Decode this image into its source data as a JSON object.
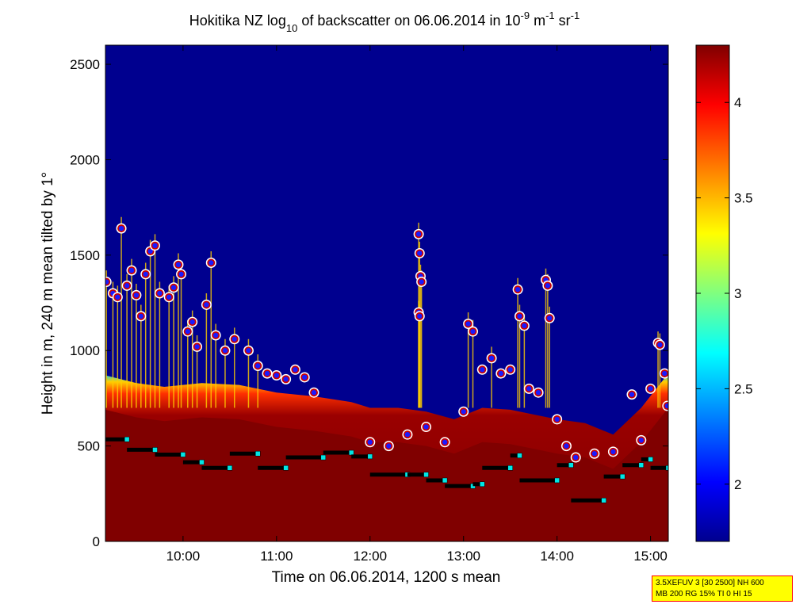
{
  "title": {
    "prefix": "Hokitika NZ log",
    "sub": "10",
    "mid": " of backscatter on 06.06.2014 in 10",
    "sup1": "-9",
    "mid2": " m",
    "sup2": "-1",
    "mid3": " sr",
    "sup3": "-1"
  },
  "info_box": {
    "line1": "3.5XEFUV 3 [30 2500] NH 600",
    "line2": "MB 200 RG 15% TI 0 HI 15"
  },
  "colors": {
    "background": "#00008f",
    "signal_low": "#00cfff",
    "signal_mid": "#ffcf00",
    "signal_high": "#800000",
    "marker_fill": "#1a1aff",
    "marker_ring": "#cc0000",
    "marker_outline": "#ffffff",
    "step_line": "#000000",
    "step_marker": "#00e5e5"
  },
  "chart_data": {
    "type": "heatmap",
    "xlabel": "Time on 06.06.2014, 1200 s mean",
    "ylabel": "Height in m, 240 m mean tilted by 1°",
    "xlim": [
      9.17,
      15.19
    ],
    "ylim": [
      0,
      2600
    ],
    "x_ticks": [
      10,
      11,
      12,
      13,
      14,
      15
    ],
    "x_tick_labels": [
      "10:00",
      "11:00",
      "12:00",
      "13:00",
      "14:00",
      "15:00"
    ],
    "y_ticks": [
      0,
      500,
      1000,
      1500,
      2000,
      2500
    ],
    "y_tick_labels": [
      "0",
      "500",
      "1000",
      "1500",
      "2000",
      "2500"
    ],
    "colorbar": {
      "range": [
        1.7,
        4.3
      ],
      "ticks": [
        2,
        2.5,
        3,
        3.5,
        4
      ],
      "tick_labels": [
        "2",
        "2.5",
        "3",
        "3.5",
        "4"
      ]
    },
    "signal_top_height": [
      [
        9.17,
        870
      ],
      [
        9.5,
        830
      ],
      [
        9.8,
        810
      ],
      [
        10.2,
        830
      ],
      [
        10.6,
        820
      ],
      [
        11.0,
        780
      ],
      [
        11.4,
        760
      ],
      [
        11.8,
        730
      ],
      [
        12.0,
        700
      ],
      [
        12.3,
        700
      ],
      [
        12.6,
        680
      ],
      [
        12.9,
        640
      ],
      [
        13.2,
        700
      ],
      [
        13.5,
        690
      ],
      [
        13.8,
        660
      ],
      [
        14.0,
        640
      ],
      [
        14.3,
        620
      ],
      [
        14.6,
        560
      ],
      [
        14.9,
        700
      ],
      [
        15.19,
        880
      ]
    ],
    "cloud_base_heights": [
      [
        9.18,
        1360
      ],
      [
        9.25,
        1300
      ],
      [
        9.3,
        1280
      ],
      [
        9.34,
        1640
      ],
      [
        9.4,
        1340
      ],
      [
        9.45,
        1420
      ],
      [
        9.5,
        1290
      ],
      [
        9.55,
        1180
      ],
      [
        9.6,
        1400
      ],
      [
        9.65,
        1520
      ],
      [
        9.7,
        1550
      ],
      [
        9.75,
        1300
      ],
      [
        9.85,
        1280
      ],
      [
        9.9,
        1330
      ],
      [
        9.95,
        1450
      ],
      [
        9.98,
        1400
      ],
      [
        10.05,
        1100
      ],
      [
        10.1,
        1150
      ],
      [
        10.15,
        1020
      ],
      [
        10.25,
        1240
      ],
      [
        10.3,
        1460
      ],
      [
        10.35,
        1080
      ],
      [
        10.45,
        1000
      ],
      [
        10.55,
        1060
      ],
      [
        10.7,
        1000
      ],
      [
        10.8,
        920
      ],
      [
        10.9,
        880
      ],
      [
        11.0,
        870
      ],
      [
        11.1,
        850
      ],
      [
        11.2,
        900
      ],
      [
        11.3,
        860
      ],
      [
        11.4,
        780
      ],
      [
        12.0,
        520
      ],
      [
        12.2,
        500
      ],
      [
        12.4,
        560
      ],
      [
        12.52,
        1610
      ],
      [
        12.53,
        1510
      ],
      [
        12.54,
        1390
      ],
      [
        12.55,
        1360
      ],
      [
        12.52,
        1200
      ],
      [
        12.53,
        1180
      ],
      [
        12.6,
        600
      ],
      [
        12.8,
        520
      ],
      [
        13.0,
        680
      ],
      [
        13.05,
        1140
      ],
      [
        13.1,
        1100
      ],
      [
        13.2,
        900
      ],
      [
        13.3,
        960
      ],
      [
        13.4,
        880
      ],
      [
        13.5,
        900
      ],
      [
        13.58,
        1320
      ],
      [
        13.6,
        1180
      ],
      [
        13.65,
        1130
      ],
      [
        13.7,
        800
      ],
      [
        13.8,
        780
      ],
      [
        13.88,
        1370
      ],
      [
        13.9,
        1340
      ],
      [
        13.92,
        1170
      ],
      [
        14.0,
        640
      ],
      [
        14.1,
        500
      ],
      [
        14.2,
        440
      ],
      [
        14.4,
        460
      ],
      [
        14.6,
        470
      ],
      [
        14.8,
        770
      ],
      [
        14.9,
        530
      ],
      [
        15.0,
        800
      ],
      [
        15.08,
        1040
      ],
      [
        15.1,
        1030
      ],
      [
        15.15,
        880
      ],
      [
        15.18,
        710
      ]
    ],
    "step_layer_heights": [
      [
        9.17,
        535
      ],
      [
        9.4,
        480
      ],
      [
        9.7,
        455
      ],
      [
        10.0,
        415
      ],
      [
        10.2,
        385
      ],
      [
        10.5,
        460
      ],
      [
        10.8,
        385
      ],
      [
        11.1,
        440
      ],
      [
        11.5,
        465
      ],
      [
        11.8,
        445
      ],
      [
        12.0,
        350
      ],
      [
        12.4,
        350
      ],
      [
        12.6,
        320
      ],
      [
        12.8,
        290
      ],
      [
        13.1,
        300
      ],
      [
        13.2,
        385
      ],
      [
        13.5,
        450
      ],
      [
        13.6,
        320
      ],
      [
        14.0,
        400
      ],
      [
        14.15,
        215
      ],
      [
        14.5,
        340
      ],
      [
        14.7,
        400
      ],
      [
        14.9,
        430
      ],
      [
        15.0,
        385
      ],
      [
        15.19,
        385
      ]
    ]
  }
}
